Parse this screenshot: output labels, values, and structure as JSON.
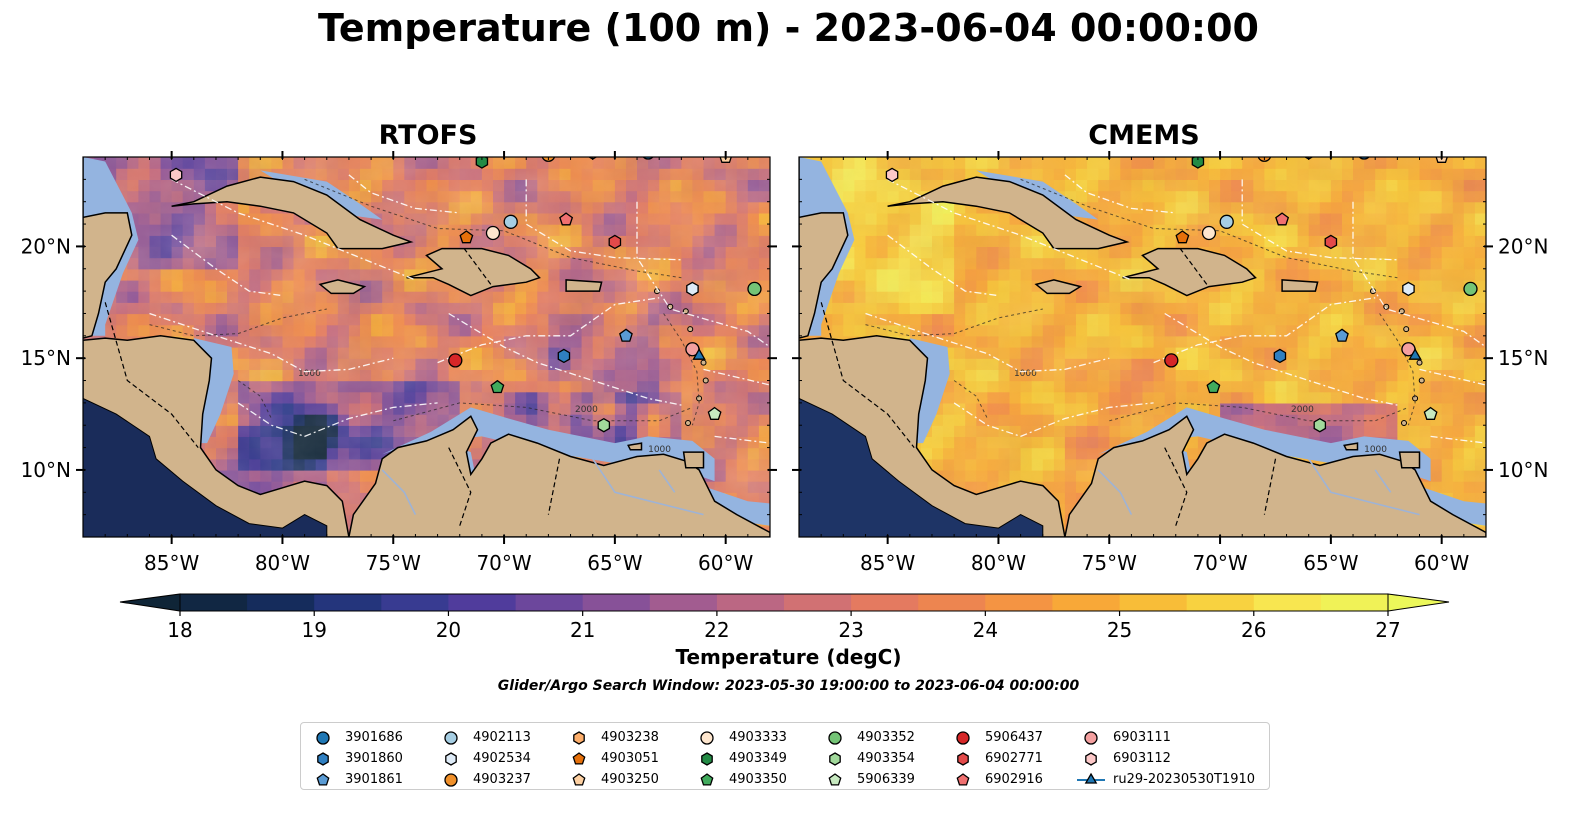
{
  "title": "Temperature (100 m) - 2023-06-04 00:00:00",
  "colors": {
    "land": "#d1b48c",
    "shelf": "#94b4e0",
    "river": "#9eb3d6",
    "scale": [
      "#0f2537",
      "#152c5c",
      "#2c3a8c",
      "#503c9c",
      "#7a4c9c",
      "#a25c90",
      "#c86c7c",
      "#e47a60",
      "#f28a48",
      "#f8a838",
      "#f8c838",
      "#f8e650",
      "#ecf85a"
    ]
  },
  "chart_data": [
    {
      "type": "heatmap",
      "title": "RTOFS",
      "field_style": "rtofs",
      "xlim": [
        -89,
        -58
      ],
      "ylim": [
        7,
        24
      ],
      "xticks": [
        -85,
        -80,
        -75,
        -70,
        -65,
        -60
      ],
      "xtick_labels": [
        "85°W",
        "80°W",
        "75°W",
        "70°W",
        "65°W",
        "60°W"
      ],
      "yticks": [
        10,
        15,
        20
      ],
      "ytick_labels": [
        "10°N",
        "15°N",
        "20°N"
      ],
      "ytick_side": "left",
      "contour_labels": [
        "1000",
        "2000",
        "1000"
      ]
    },
    {
      "type": "heatmap",
      "title": "CMEMS",
      "field_style": "cmems",
      "xlim": [
        -89,
        -58
      ],
      "ylim": [
        7,
        24
      ],
      "xticks": [
        -85,
        -80,
        -75,
        -70,
        -65,
        -60
      ],
      "xtick_labels": [
        "85°W",
        "80°W",
        "75°W",
        "70°W",
        "65°W",
        "60°W"
      ],
      "yticks": [
        10,
        15,
        20
      ],
      "ytick_labels": [
        "10°N",
        "15°N",
        "20°N"
      ],
      "ytick_side": "right",
      "contour_labels": [
        "1000",
        "2000",
        "1000"
      ]
    }
  ],
  "colorbar": {
    "label": "Temperature (degC)",
    "min": 18,
    "max": 27,
    "ticks": [
      18,
      19,
      20,
      21,
      22,
      23,
      24,
      25,
      26,
      27
    ],
    "tick_labels": [
      "18",
      "19",
      "20",
      "21",
      "22",
      "23",
      "24",
      "25",
      "26",
      "27"
    ]
  },
  "search_window": "Glider/Argo Search Window: 2023-05-30 19:00:00 to 2023-06-04 00:00:00",
  "floats": [
    {
      "id": "3901686",
      "marker": "circle",
      "color": "#1f77b4",
      "lon": -63.5,
      "lat": 24.2
    },
    {
      "id": "3901860",
      "marker": "hexagon",
      "color": "#2f7fc1",
      "lon": -67.3,
      "lat": 15.1
    },
    {
      "id": "3901861",
      "marker": "pentagon",
      "color": "#5a9bd4",
      "lon": -64.5,
      "lat": 16.0
    },
    {
      "id": "4902113",
      "marker": "circle",
      "color": "#a6cee3",
      "lon": -69.7,
      "lat": 21.1
    },
    {
      "id": "4902534",
      "marker": "hexagon",
      "color": "#deebf7",
      "lon": -61.5,
      "lat": 18.1
    },
    {
      "id": "4903237",
      "marker": "circle",
      "color": "#f0902a",
      "lon": -68.0,
      "lat": 24.1
    },
    {
      "id": "4903238",
      "marker": "hexagon",
      "color": "#fdae6b",
      "lon": -66.0,
      "lat": 24.2
    },
    {
      "id": "4903051",
      "marker": "pentagon",
      "color": "#e6700a",
      "lon": -71.7,
      "lat": 20.4
    },
    {
      "id": "4903250",
      "marker": "pentagon",
      "color": "#fdd0a2",
      "lon": -60.0,
      "lat": 24.0
    },
    {
      "id": "4903333",
      "marker": "circle",
      "color": "#fee6ce",
      "lon": -70.5,
      "lat": 20.6
    },
    {
      "id": "4903349",
      "marker": "hexagon",
      "color": "#238b45",
      "lon": -71.0,
      "lat": 23.8
    },
    {
      "id": "4903350",
      "marker": "pentagon",
      "color": "#41ab5d",
      "lon": -70.3,
      "lat": 13.7
    },
    {
      "id": "4903352",
      "marker": "circle",
      "color": "#74c476",
      "lon": -58.7,
      "lat": 18.1
    },
    {
      "id": "4903354",
      "marker": "hexagon",
      "color": "#a1d99b",
      "lon": -65.5,
      "lat": 12.0
    },
    {
      "id": "5906339",
      "marker": "pentagon",
      "color": "#c7e9c0",
      "lon": -60.5,
      "lat": 12.5
    },
    {
      "id": "5906437",
      "marker": "circle",
      "color": "#d62728",
      "lon": -72.2,
      "lat": 14.9
    },
    {
      "id": "6902771",
      "marker": "hexagon",
      "color": "#e34a4a",
      "lon": -65.0,
      "lat": 20.2
    },
    {
      "id": "6902916",
      "marker": "pentagon",
      "color": "#f07070",
      "lon": -67.2,
      "lat": 21.2
    },
    {
      "id": "6903111",
      "marker": "circle",
      "color": "#f4a0a0",
      "lon": -61.5,
      "lat": 15.4
    },
    {
      "id": "6903112",
      "marker": "hexagon",
      "color": "#fcc8c8",
      "lon": -84.8,
      "lat": 23.2
    },
    {
      "id": "ru29-20230530T1910",
      "marker": "triangle",
      "color": "#1f77b4",
      "lon": -61.2,
      "lat": 15.1
    }
  ]
}
